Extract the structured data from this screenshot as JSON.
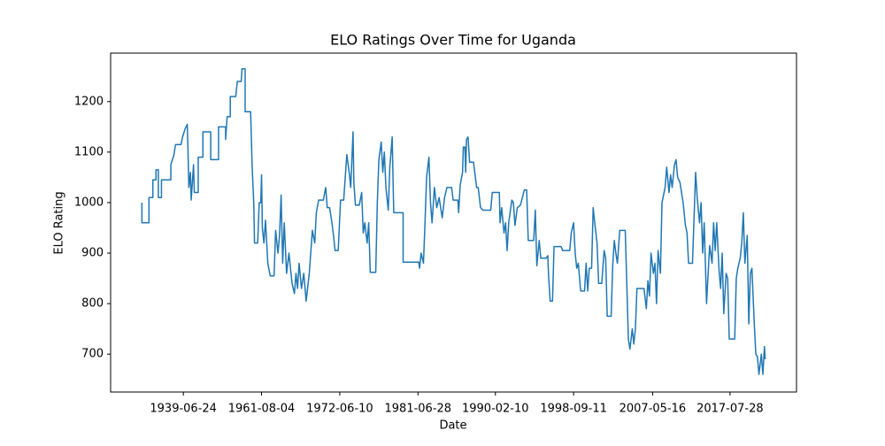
{
  "chart_data": {
    "type": "line",
    "title": "ELO Ratings Over Time for Uganda",
    "x_label": "Date",
    "y_label": "ELO Rating",
    "xlim": [
      -40,
      837
    ],
    "ylim": [
      625,
      1296
    ],
    "xticks": [
      {
        "value": 53,
        "label": "1939-06-24"
      },
      {
        "value": 153,
        "label": "1961-08-04"
      },
      {
        "value": 253,
        "label": "1972-06-10"
      },
      {
        "value": 353,
        "label": "1981-06-28"
      },
      {
        "value": 452,
        "label": "1990-02-10"
      },
      {
        "value": 552,
        "label": "1998-09-11"
      },
      {
        "value": 653,
        "label": "2007-05-16"
      },
      {
        "value": 752,
        "label": "2017-07-28"
      }
    ],
    "yticks": [
      700,
      800,
      900,
      1000,
      1100,
      1200
    ],
    "series": [
      {
        "color": "#1f77b4",
        "x": [
          0,
          0,
          9,
          9,
          14,
          14,
          18,
          18,
          21,
          21,
          25,
          25,
          37,
          37,
          41,
          43,
          50,
          52,
          55,
          58,
          59,
          60,
          62,
          63,
          66,
          67,
          72,
          72,
          78,
          78,
          88,
          88,
          98,
          98,
          107,
          107,
          109,
          113,
          113,
          120,
          122,
          127,
          128,
          132,
          132,
          139,
          141,
          143,
          144,
          148,
          150,
          152,
          153,
          154,
          156,
          158,
          161,
          164,
          169,
          171,
          174,
          176,
          178,
          180,
          182,
          185,
          188,
          192,
          195,
          197,
          199,
          201,
          204,
          207,
          210,
          214,
          218,
          221,
          223,
          226,
          232,
          235,
          237,
          240,
          243,
          245,
          247,
          251,
          254,
          258,
          260,
          262,
          265,
          267,
          270,
          271,
          273,
          278,
          281,
          283,
          285,
          288,
          290,
          292,
          299,
          301,
          303,
          306,
          308,
          310,
          312,
          315,
          317,
          320,
          322,
          334,
          334,
          354,
          355,
          357,
          360,
          362,
          364,
          367,
          369,
          371,
          374,
          377,
          380,
          384,
          387,
          390,
          396,
          398,
          404,
          405,
          407,
          410,
          411,
          413,
          414,
          415,
          417,
          419,
          424,
          428,
          430,
          433,
          436,
          446,
          448,
          457,
          458,
          460,
          463,
          465,
          467,
          469,
          473,
          475,
          477,
          480,
          484,
          489,
          492,
          494,
          501,
          503,
          505,
          508,
          510,
          517,
          519,
          520,
          522,
          525,
          527,
          536,
          538,
          547,
          549,
          552,
          554,
          556,
          558,
          561,
          566,
          568,
          570,
          572,
          575,
          577,
          579,
          582,
          584,
          588,
          591,
          593,
          595,
          600,
          602,
          604,
          606,
          608,
          611,
          618,
          620,
          622,
          624,
          627,
          629,
          631,
          633,
          642,
          645,
          647,
          649,
          651,
          654,
          656,
          658,
          660,
          663,
          665,
          669,
          671,
          674,
          676,
          678,
          681,
          683,
          685,
          688,
          690,
          692,
          695,
          697,
          699,
          704,
          708,
          710,
          713,
          715,
          717,
          719,
          722,
          724,
          726,
          729,
          731,
          733,
          735,
          738,
          740,
          742,
          744,
          747,
          749,
          751,
          758,
          760,
          762,
          765,
          767,
          769,
          771,
          774,
          776,
          778,
          780,
          783,
          785,
          787,
          789,
          792,
          794,
          796,
          797
        ],
        "values": [
          1000,
          960,
          960,
          1010,
          1010,
          1045,
          1045,
          1065,
          1065,
          1010,
          1010,
          1045,
          1045,
          1075,
          1095,
          1115,
          1115,
          1130,
          1145,
          1155,
          1100,
          1030,
          1060,
          1005,
          1075,
          1020,
          1020,
          1090,
          1090,
          1140,
          1140,
          1085,
          1085,
          1150,
          1150,
          1125,
          1170,
          1170,
          1210,
          1210,
          1240,
          1240,
          1265,
          1265,
          1180,
          1180,
          1070,
          1000,
          920,
          920,
          1000,
          1000,
          1055,
          950,
          920,
          965,
          880,
          855,
          855,
          945,
          900,
          935,
          1015,
          880,
          960,
          860,
          900,
          840,
          820,
          860,
          830,
          880,
          830,
          860,
          805,
          860,
          945,
          920,
          980,
          1005,
          1005,
          1030,
          990,
          990,
          960,
          935,
          905,
          905,
          1005,
          1005,
          1050,
          1095,
          1060,
          1030,
          1140,
          1040,
          995,
          995,
          1020,
          940,
          960,
          920,
          960,
          862,
          862,
          1000,
          1085,
          1120,
          1060,
          1100,
          1030,
          985,
          1070,
          1130,
          980,
          980,
          882,
          882,
          870,
          900,
          880,
          960,
          1050,
          1090,
          1000,
          960,
          1030,
          990,
          1010,
          970,
          1010,
          1030,
          1030,
          1005,
          1005,
          980,
          1035,
          1060,
          1110,
          1110,
          1060,
          1125,
          1130,
          1080,
          1080,
          1030,
          1030,
          990,
          985,
          985,
          1020,
          1020,
          960,
          990,
          940,
          960,
          905,
          960,
          1005,
          1000,
          955,
          990,
          995,
          1025,
          1025,
          925,
          925,
          985,
          875,
          925,
          890,
          890,
          895,
          855,
          805,
          805,
          913,
          913,
          905,
          905,
          940,
          960,
          900,
          870,
          880,
          825,
          825,
          880,
          825,
          870,
          870,
          990,
          960,
          920,
          840,
          840,
          905,
          890,
          775,
          775,
          875,
          925,
          900,
          880,
          945,
          945,
          840,
          730,
          710,
          750,
          720,
          750,
          830,
          830,
          790,
          845,
          815,
          900,
          860,
          880,
          800,
          905,
          860,
          1000,
          1030,
          1070,
          1020,
          1055,
          1030,
          1075,
          1085,
          1050,
          1040,
          1020,
          1000,
          955,
          940,
          880,
          880,
          1060,
          1010,
          960,
          1000,
          900,
          960,
          800,
          860,
          915,
          880,
          960,
          905,
          960,
          865,
          830,
          900,
          780,
          860,
          850,
          730,
          730,
          850,
          870,
          890,
          920,
          980,
          880,
          935,
          760,
          860,
          870,
          760,
          700,
          695,
          660,
          700,
          660,
          715,
          690
        ]
      }
    ]
  }
}
